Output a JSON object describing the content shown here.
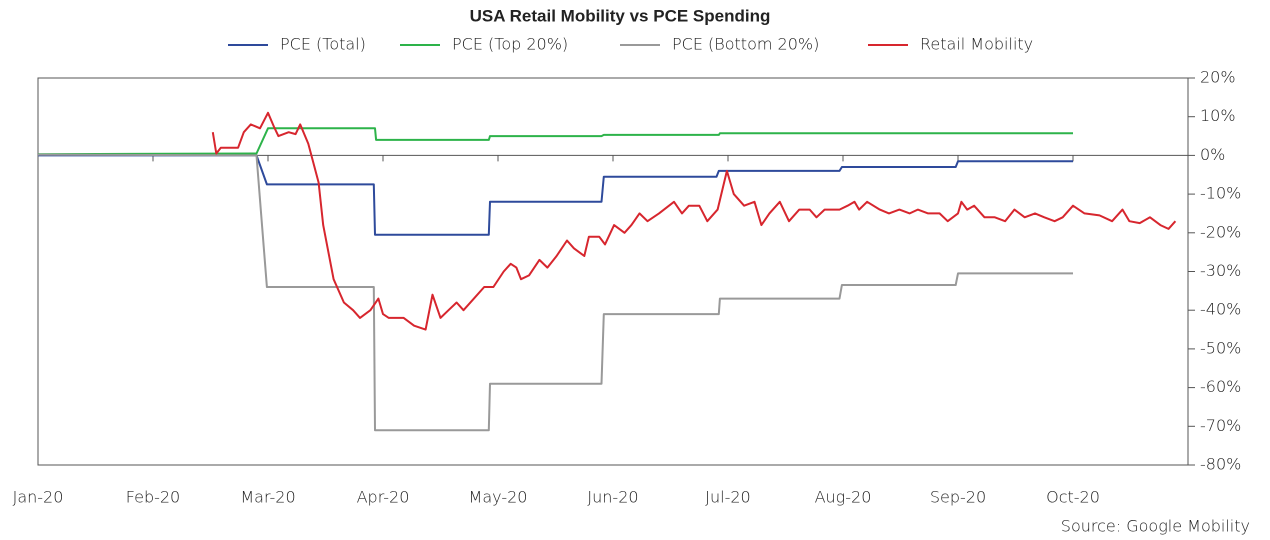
{
  "chart_data": {
    "type": "line",
    "title": "USA Retail Mobility vs PCE Spending",
    "source": "Source: Google Mobility",
    "xlim": [
      0,
      10
    ],
    "xticks": [
      {
        "value": 0,
        "label": "Jan-20"
      },
      {
        "value": 1,
        "label": "Feb-20"
      },
      {
        "value": 2,
        "label": "Mar-20"
      },
      {
        "value": 3,
        "label": "Apr-20"
      },
      {
        "value": 4,
        "label": "May-20"
      },
      {
        "value": 5,
        "label": "Jun-20"
      },
      {
        "value": 6,
        "label": "Jul-20"
      },
      {
        "value": 7,
        "label": "Aug-20"
      },
      {
        "value": 8,
        "label": "Sep-20"
      },
      {
        "value": 9,
        "label": "Oct-20"
      }
    ],
    "ylim": [
      -80,
      20
    ],
    "yticks": [
      {
        "value": 20,
        "label": "20%"
      },
      {
        "value": 10,
        "label": "10%"
      },
      {
        "value": 0,
        "label": "0%"
      },
      {
        "value": -10,
        "label": "-10%"
      },
      {
        "value": -20,
        "label": "-20%"
      },
      {
        "value": -30,
        "label": "-30%"
      },
      {
        "value": -40,
        "label": "-40%"
      },
      {
        "value": -50,
        "label": "-50%"
      },
      {
        "value": -60,
        "label": "-60%"
      },
      {
        "value": -70,
        "label": "-70%"
      },
      {
        "value": -80,
        "label": "-80%"
      }
    ],
    "series": [
      {
        "name": "PCE (Total)",
        "color": "#2e4a9b",
        "x": [
          0,
          1.9,
          1.99,
          2.92,
          2.93,
          3.92,
          3.93,
          4.9,
          4.92,
          5.9,
          5.92,
          6.97,
          6.99,
          7.98,
          8.0,
          9.0
        ],
        "values": [
          0,
          0,
          -7.5,
          -7.5,
          -20.5,
          -20.5,
          -12,
          -12,
          -5.5,
          -5.5,
          -4,
          -4,
          -3,
          -3,
          -1.5,
          -1.5
        ]
      },
      {
        "name": "PCE (Top 20%)",
        "color": "#2db34a",
        "x": [
          0,
          1.9,
          2.0,
          2.93,
          2.94,
          3.92,
          3.93,
          4.9,
          4.92,
          5.92,
          5.93,
          9.0
        ],
        "values": [
          0.3,
          0.5,
          7,
          7,
          4,
          4,
          5,
          5,
          5.3,
          5.3,
          5.7,
          5.7
        ]
      },
      {
        "name": "PCE (Bottom 20%)",
        "color": "#999999",
        "x": [
          0,
          1.9,
          1.99,
          2.92,
          2.93,
          3.92,
          3.93,
          4.9,
          4.92,
          5.92,
          5.93,
          6.97,
          6.99,
          7.98,
          8.0,
          9.0
        ],
        "values": [
          0.2,
          0,
          -34,
          -34,
          -71,
          -71,
          -59,
          -59,
          -41,
          -41,
          -37,
          -37,
          -33.5,
          -33.5,
          -30.5,
          -30.5
        ]
      },
      {
        "name": "Retail Mobility",
        "color": "#d7262e",
        "x": [
          1.52,
          1.55,
          1.59,
          1.66,
          1.74,
          1.79,
          1.85,
          1.93,
          2.0,
          2.05,
          2.09,
          2.18,
          2.24,
          2.28,
          2.35,
          2.44,
          2.48,
          2.57,
          2.66,
          2.74,
          2.8,
          2.89,
          2.96,
          3.0,
          3.05,
          3.18,
          3.27,
          3.37,
          3.43,
          3.5,
          3.57,
          3.64,
          3.7,
          3.79,
          3.88,
          3.96,
          4.05,
          4.11,
          4.16,
          4.2,
          4.27,
          4.36,
          4.43,
          4.51,
          4.6,
          4.66,
          4.75,
          4.79,
          4.88,
          4.93,
          5.01,
          5.1,
          5.16,
          5.23,
          5.3,
          5.4,
          5.53,
          5.6,
          5.66,
          5.75,
          5.82,
          5.91,
          5.99,
          6.05,
          6.14,
          6.23,
          6.29,
          6.36,
          6.45,
          6.53,
          6.62,
          6.71,
          6.77,
          6.84,
          6.97,
          7.04,
          7.1,
          7.14,
          7.21,
          7.32,
          7.4,
          7.49,
          7.58,
          7.65,
          7.74,
          7.84,
          7.91,
          8.0,
          8.03,
          8.08,
          8.14,
          8.23,
          8.32,
          8.41,
          8.49,
          8.58,
          8.67,
          8.75,
          8.84,
          8.91,
          9.0,
          9.1,
          9.23,
          9.34,
          9.43,
          9.49,
          9.58,
          9.67,
          9.76,
          9.83,
          9.89
        ],
        "values": [
          6,
          0.5,
          2,
          2,
          2,
          6,
          8,
          7,
          11,
          7.5,
          5,
          6,
          5.5,
          8,
          3,
          -7,
          -18,
          -32,
          -38,
          -40,
          -42,
          -40,
          -37,
          -41,
          -42,
          -42,
          -44,
          -45,
          -36,
          -42,
          -40,
          -38,
          -40,
          -37,
          -34,
          -34,
          -30,
          -28,
          -29,
          -32,
          -31,
          -27,
          -29,
          -26,
          -22,
          -24,
          -26,
          -21,
          -21,
          -23,
          -18,
          -20,
          -18,
          -15,
          -17,
          -15,
          -12,
          -15,
          -13,
          -13,
          -17,
          -14,
          -4,
          -10,
          -13,
          -12,
          -18,
          -15,
          -12,
          -17,
          -14,
          -14,
          -16,
          -14,
          -14,
          -13,
          -12,
          -14,
          -12,
          -14,
          -15,
          -14,
          -15,
          -14,
          -15,
          -15,
          -17,
          -15,
          -12,
          -14,
          -13,
          -16,
          -16,
          -17,
          -14,
          -16,
          -15,
          -16,
          -17,
          -16,
          -13,
          -15,
          -15.5,
          -17,
          -14,
          -17,
          -17.5,
          -16,
          -18,
          -19,
          -17
        ]
      }
    ]
  }
}
